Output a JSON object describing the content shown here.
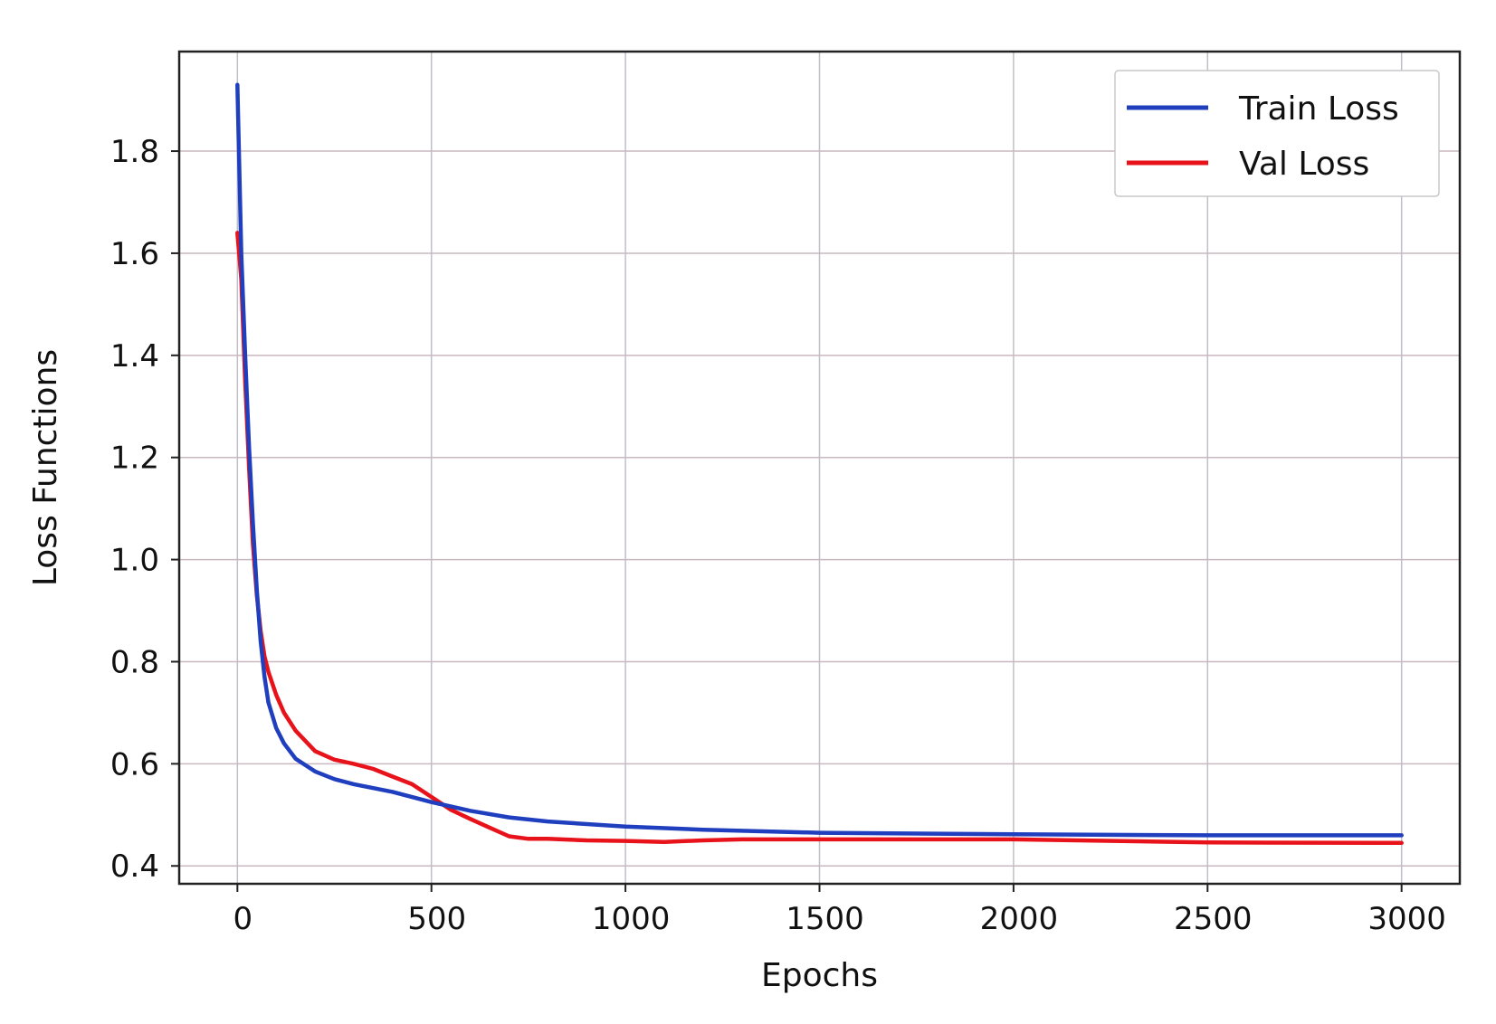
{
  "chart_data": {
    "type": "line",
    "title": "",
    "xlabel": "Epochs",
    "ylabel": "Loss Functions",
    "xlim": [
      -150,
      3150
    ],
    "ylim": [
      0.365,
      1.995
    ],
    "xticks": [
      0,
      500,
      1000,
      1500,
      2000,
      2500,
      3000
    ],
    "xtick_labels": [
      "0",
      "500",
      "1000",
      "1500",
      "2000",
      "2500",
      "3000"
    ],
    "yticks": [
      0.4,
      0.6,
      0.8,
      1.0,
      1.2,
      1.4,
      1.6,
      1.8
    ],
    "ytick_labels": [
      "0.4",
      "0.6",
      "0.8",
      "1.0",
      "1.2",
      "1.4",
      "1.6",
      "1.8"
    ],
    "grid": true,
    "legend_position": "top-right",
    "series": [
      {
        "name": "Train Loss",
        "color": "#1f3fbf",
        "x": [
          0,
          10,
          20,
          30,
          40,
          50,
          60,
          70,
          80,
          100,
          120,
          150,
          200,
          250,
          300,
          400,
          500,
          600,
          700,
          800,
          1000,
          1200,
          1500,
          2000,
          2500,
          3000
        ],
        "y": [
          1.93,
          1.6,
          1.4,
          1.22,
          1.07,
          0.94,
          0.84,
          0.77,
          0.72,
          0.67,
          0.64,
          0.61,
          0.585,
          0.57,
          0.56,
          0.545,
          0.525,
          0.508,
          0.495,
          0.487,
          0.477,
          0.471,
          0.465,
          0.462,
          0.46,
          0.46
        ]
      },
      {
        "name": "Val Loss",
        "color": "#e8121a",
        "x": [
          0,
          10,
          20,
          30,
          40,
          50,
          60,
          70,
          80,
          100,
          120,
          150,
          200,
          250,
          300,
          350,
          400,
          450,
          500,
          550,
          600,
          650,
          700,
          750,
          800,
          900,
          1000,
          1100,
          1200,
          1300,
          1500,
          2000,
          2500,
          3000
        ],
        "y": [
          1.64,
          1.55,
          1.35,
          1.18,
          1.03,
          0.93,
          0.86,
          0.81,
          0.78,
          0.735,
          0.7,
          0.665,
          0.625,
          0.608,
          0.6,
          0.59,
          0.575,
          0.56,
          0.535,
          0.51,
          0.492,
          0.475,
          0.458,
          0.453,
          0.453,
          0.45,
          0.449,
          0.447,
          0.45,
          0.452,
          0.452,
          0.452,
          0.446,
          0.445
        ]
      }
    ]
  }
}
